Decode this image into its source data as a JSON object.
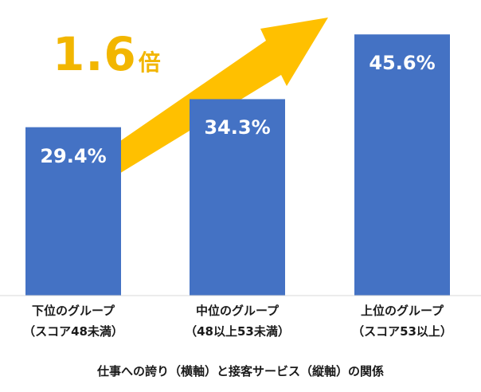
{
  "chart_data": {
    "type": "bar",
    "categories": [
      {
        "line1": "下位のグループ",
        "line2": "（スコア48未満）"
      },
      {
        "line1": "中位のグループ",
        "line2": "（48以上53未満）"
      },
      {
        "line1": "上位のグループ",
        "line2": "（スコア53以上）"
      }
    ],
    "values": [
      29.4,
      34.3,
      45.6
    ],
    "data_labels": [
      "29.4%",
      "34.3%",
      "45.6%"
    ],
    "xlabel": "仕事への誇り（横軸）と接客サービス（縦軸）の関係",
    "ylabel": "",
    "ylim": [
      0,
      46.6
    ],
    "annotation": {
      "multiplier": "1.6",
      "unit": "倍",
      "arrow": "rising-arrow"
    }
  },
  "colors": {
    "bar": "#4472c4",
    "arrow": "#ffc000",
    "accent_text": "#f2b600",
    "axis": "#d9d9d9"
  }
}
